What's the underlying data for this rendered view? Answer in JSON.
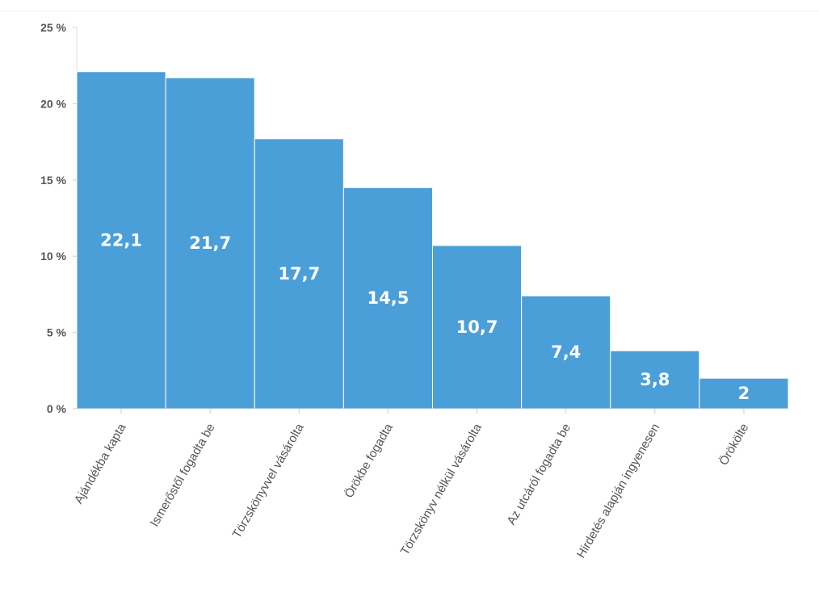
{
  "chart_data": {
    "type": "bar",
    "categories": [
      "Ajándékba kapta",
      "Ismerőstől fogadta be",
      "Törzskönyvvel vásárolta",
      "Örökbe fogadta",
      "Törzskönyv nélkül vásárolta",
      "Az utcáról fogadta be",
      "Hirdetés alapján ingyenesen",
      "Örökölte"
    ],
    "values": [
      22.1,
      21.7,
      17.7,
      14.5,
      10.7,
      7.4,
      3.8,
      2
    ],
    "value_labels": [
      "22,1",
      "21,7",
      "17,7",
      "14,5",
      "10,7",
      "7,4",
      "3,8",
      "2"
    ],
    "y_ticks": [
      0,
      5,
      10,
      15,
      20,
      25
    ],
    "y_tick_labels": [
      "0 %",
      "5 %",
      "10 %",
      "15 %",
      "20 %",
      "25 %"
    ],
    "ylim": [
      0,
      25
    ],
    "title": "",
    "xlabel": "",
    "ylabel": "",
    "grid": false,
    "bar_color": "#4a9fd8",
    "bar_edge_color": "#ffffff",
    "axis_color": "#dddddd"
  }
}
